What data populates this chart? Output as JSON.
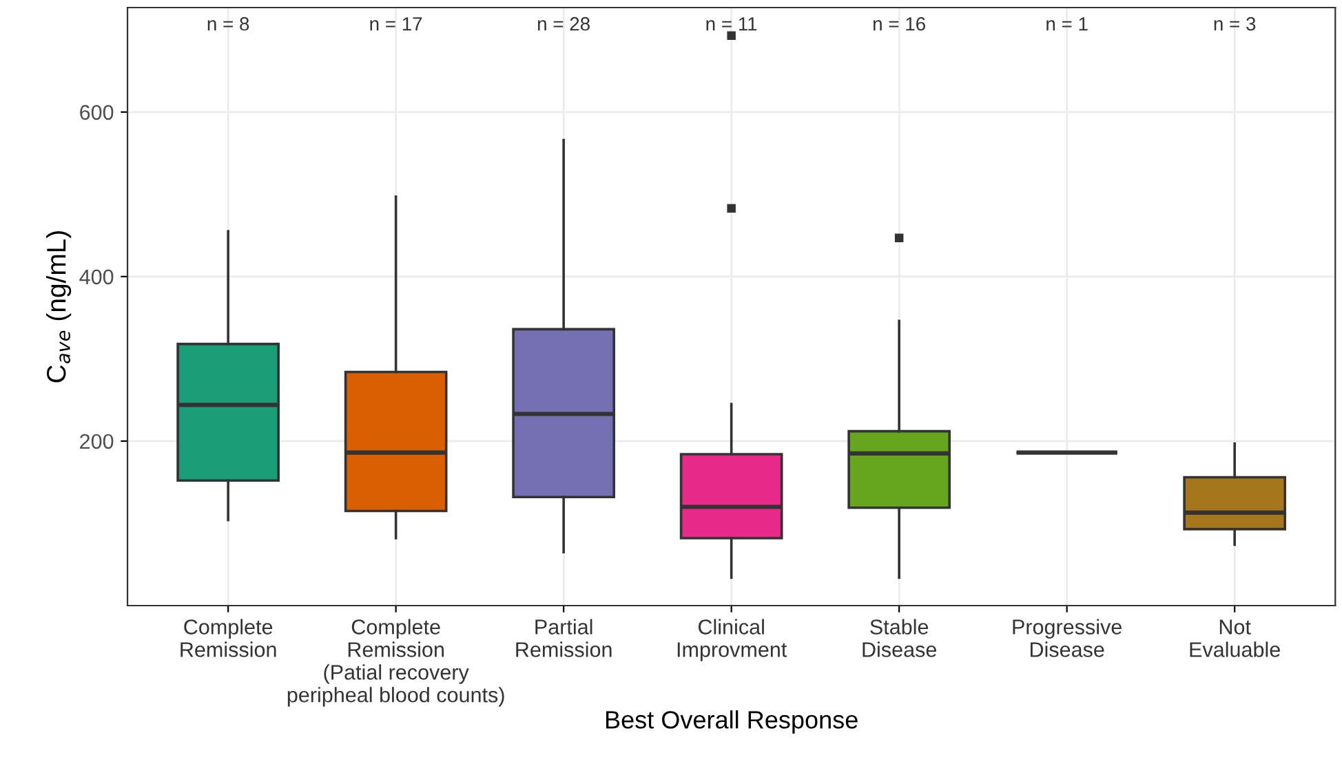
{
  "chart_data": {
    "type": "box",
    "xlabel": "Best Overall Response",
    "ylabel": "C$_{ave}$ (ng/mL)",
    "categories": [
      "Complete\nRemission",
      "Complete\nRemission\n(Patial recovery\nperipheal blood counts)",
      "Partial\nRemission",
      "Clinical\nImprovment",
      "Stable\nDisease",
      "Progressive\nDisease",
      "Not\nEvaluable"
    ],
    "colors": [
      "#1b9e77",
      "#d95f02",
      "#7570b3",
      "#e7298a",
      "#66a61e",
      "#333333",
      "#a6761d"
    ],
    "boxes": [
      {
        "low": 104,
        "q1": 152,
        "median": 244,
        "q3": 318,
        "high": 455
      },
      {
        "low": 82,
        "q1": 115,
        "median": 186,
        "q3": 284,
        "high": 497
      },
      {
        "low": 65,
        "q1": 132,
        "median": 233,
        "q3": 336,
        "high": 566
      },
      {
        "low": 34,
        "q1": 82,
        "median": 120,
        "q3": 184,
        "high": 245,
        "outliers": [
          483,
          693
        ]
      },
      {
        "low": 34,
        "q1": 119,
        "median": 185,
        "q3": 212,
        "high": 346,
        "outliers": [
          447
        ]
      },
      {
        "low": 186,
        "q1": 186,
        "median": 186,
        "q3": 186,
        "high": 186
      },
      {
        "low": 74,
        "q1": 93,
        "median": 113,
        "q3": 156,
        "high": 197
      }
    ],
    "ylim": [
      0,
      727
    ],
    "yticks": [
      200,
      400,
      600
    ],
    "grid": true,
    "marker": "square",
    "annotations": [
      "n = 8",
      "n = 17",
      "n = 28",
      "n = 11",
      "n = 16",
      "n = 1",
      "n = 3"
    ]
  }
}
